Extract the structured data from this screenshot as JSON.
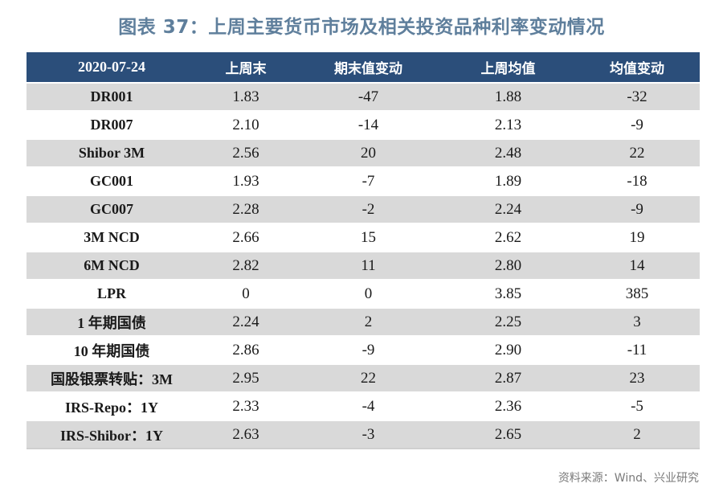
{
  "title": "图表 37：上周主要货币市场及相关投资品种利率变动情况",
  "table": {
    "headers": [
      "2020-07-24",
      "上周末",
      "期末值变动",
      "上周均值",
      "均值变动"
    ],
    "rows": [
      [
        "DR001",
        "1.83",
        "-47",
        "1.88",
        "-32"
      ],
      [
        "DR007",
        "2.10",
        "-14",
        "2.13",
        "-9"
      ],
      [
        "Shibor 3M",
        "2.56",
        "20",
        "2.48",
        "22"
      ],
      [
        "GC001",
        "1.93",
        "-7",
        "1.89",
        "-18"
      ],
      [
        "GC007",
        "2.28",
        "-2",
        "2.24",
        "-9"
      ],
      [
        "3M NCD",
        "2.66",
        "15",
        "2.62",
        "19"
      ],
      [
        "6M NCD",
        "2.82",
        "11",
        "2.80",
        "14"
      ],
      [
        "LPR",
        "0",
        "0",
        "3.85",
        "385"
      ],
      [
        "1 年期国债",
        "2.24",
        "2",
        "2.25",
        "3"
      ],
      [
        "10 年期国债",
        "2.86",
        "-9",
        "2.90",
        "-11"
      ],
      [
        "国股银票转贴：3M",
        "2.95",
        "22",
        "2.87",
        "23"
      ],
      [
        "IRS-Repo：1Y",
        "2.33",
        "-4",
        "2.36",
        "-5"
      ],
      [
        "IRS-Shibor：1Y",
        "2.63",
        "-3",
        "2.65",
        "2"
      ]
    ]
  },
  "source": "资料来源：Wind、兴业研究",
  "colors": {
    "header_bg": "#2b4e7a",
    "stripe": "#d9d9d9",
    "title": "#5f7f9c"
  }
}
